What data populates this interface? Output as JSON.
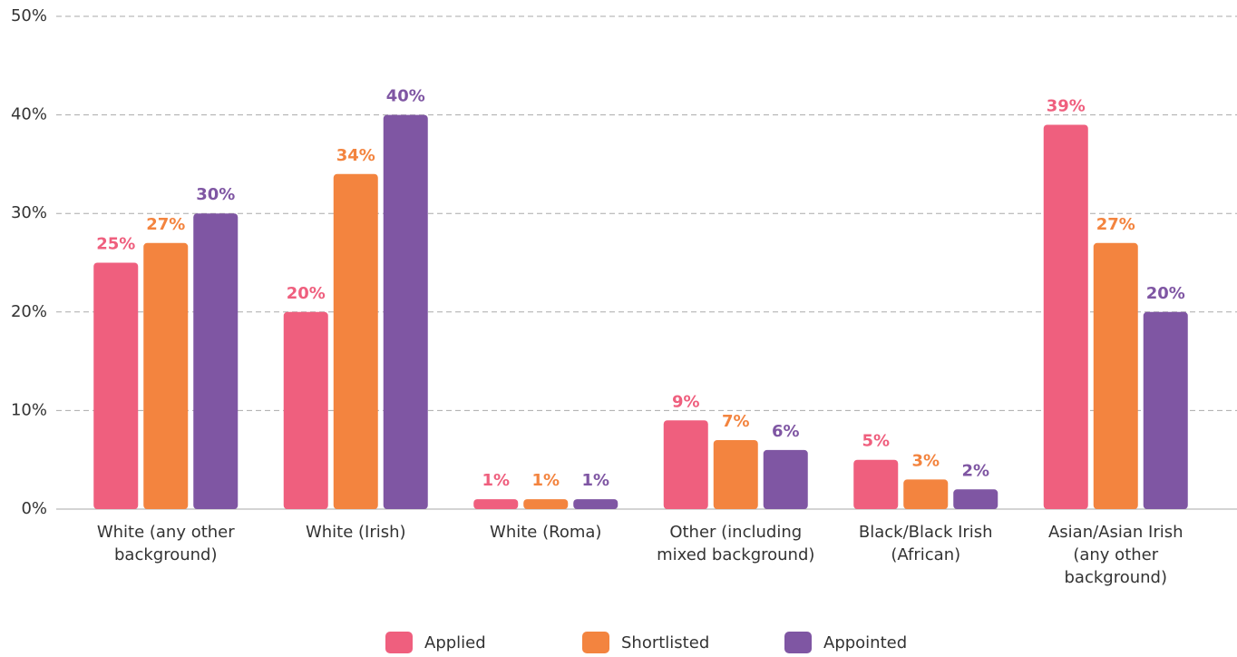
{
  "chart_data": {
    "type": "bar",
    "categories": [
      "White (any other background)",
      "White (Irish)",
      "White (Roma)",
      "Other (including mixed background)",
      "Black/Black Irish (African)",
      "Asian/Asian Irish (any other background)"
    ],
    "series": [
      {
        "name": "Applied",
        "color": "#ef5f7e",
        "values": [
          25,
          20,
          1,
          9,
          5,
          39
        ],
        "value_labels": [
          "25%",
          "20%",
          "1%",
          "9%",
          "5%",
          "39%"
        ]
      },
      {
        "name": "Shortlisted",
        "color": "#f3843f",
        "values": [
          27,
          34,
          1,
          7,
          3,
          27
        ],
        "value_labels": [
          "27%",
          "34%",
          "1%",
          "7%",
          "3%",
          "27%"
        ]
      },
      {
        "name": "Appointed",
        "color": "#7f56a3",
        "values": [
          30,
          40,
          1,
          6,
          2,
          20
        ],
        "value_labels": [
          "30%",
          "40%",
          "1%",
          "6%",
          "2%",
          "20%"
        ]
      }
    ],
    "ylim": [
      0,
      50
    ],
    "yticks": [
      {
        "value": 0,
        "label": "0%"
      },
      {
        "value": 10,
        "label": "10%"
      },
      {
        "value": 20,
        "label": "20%"
      },
      {
        "value": 30,
        "label": "30%"
      },
      {
        "value": 40,
        "label": "40%"
      },
      {
        "value": 50,
        "label": "50%"
      }
    ],
    "grid": true,
    "legend": "bottom"
  }
}
